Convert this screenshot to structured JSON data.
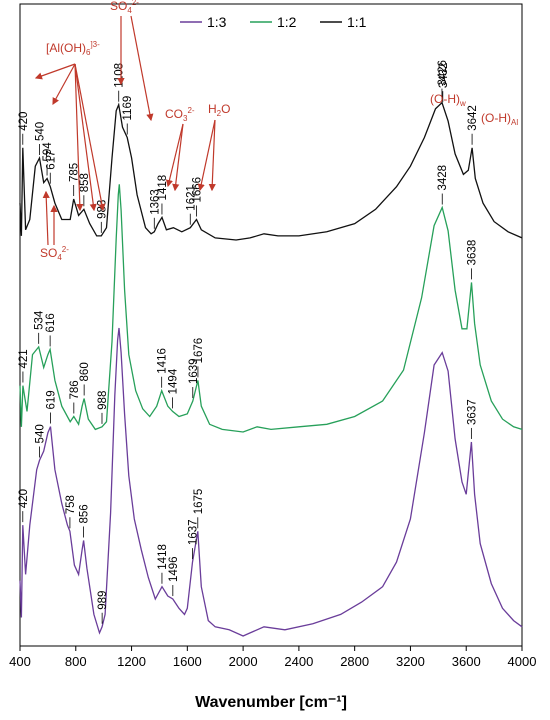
{
  "chart_data": {
    "type": "line",
    "xlabel": "Wavenumber [cm⁻¹]",
    "ylabel": "",
    "title": "",
    "xlim": [
      400,
      4000
    ],
    "xticks": [
      400,
      800,
      1200,
      1600,
      2000,
      2400,
      2800,
      3200,
      3600,
      4000
    ],
    "legend_position": "top",
    "grid": false,
    "series": [
      {
        "name": "1:3",
        "color": "#6a3d9a",
        "points": [
          [
            400,
            0.18
          ],
          [
            410,
            0.06
          ],
          [
            420,
            0.36
          ],
          [
            440,
            0.2
          ],
          [
            470,
            0.36
          ],
          [
            520,
            0.54
          ],
          [
            540,
            0.57
          ],
          [
            570,
            0.6
          ],
          [
            600,
            0.66
          ],
          [
            619,
            0.68
          ],
          [
            650,
            0.54
          ],
          [
            700,
            0.43
          ],
          [
            740,
            0.36
          ],
          [
            758,
            0.34
          ],
          [
            790,
            0.23
          ],
          [
            820,
            0.2
          ],
          [
            845,
            0.28
          ],
          [
            856,
            0.31
          ],
          [
            880,
            0.22
          ],
          [
            930,
            0.07
          ],
          [
            970,
            0.01
          ],
          [
            989,
            0.03
          ],
          [
            1010,
            0.07
          ],
          [
            1050,
            0.4
          ],
          [
            1080,
            0.78
          ],
          [
            1100,
            0.96
          ],
          [
            1110,
            1.0
          ],
          [
            1125,
            0.92
          ],
          [
            1150,
            0.72
          ],
          [
            1180,
            0.52
          ],
          [
            1220,
            0.38
          ],
          [
            1270,
            0.28
          ],
          [
            1320,
            0.19
          ],
          [
            1370,
            0.12
          ],
          [
            1418,
            0.16
          ],
          [
            1460,
            0.13
          ],
          [
            1496,
            0.12
          ],
          [
            1540,
            0.09
          ],
          [
            1580,
            0.07
          ],
          [
            1600,
            0.09
          ],
          [
            1637,
            0.24
          ],
          [
            1675,
            0.34
          ],
          [
            1700,
            0.16
          ],
          [
            1750,
            0.05
          ],
          [
            1800,
            0.03
          ],
          [
            1900,
            0.02
          ],
          [
            2000,
            0.0
          ],
          [
            2050,
            0.01
          ],
          [
            2150,
            0.03
          ],
          [
            2300,
            0.02
          ],
          [
            2500,
            0.04
          ],
          [
            2700,
            0.07
          ],
          [
            2850,
            0.11
          ],
          [
            3000,
            0.16
          ],
          [
            3100,
            0.24
          ],
          [
            3200,
            0.38
          ],
          [
            3300,
            0.66
          ],
          [
            3370,
            0.88
          ],
          [
            3428,
            0.92
          ],
          [
            3470,
            0.86
          ],
          [
            3520,
            0.64
          ],
          [
            3570,
            0.5
          ],
          [
            3600,
            0.46
          ],
          [
            3637,
            0.63
          ],
          [
            3660,
            0.46
          ],
          [
            3700,
            0.3
          ],
          [
            3780,
            0.17
          ],
          [
            3860,
            0.09
          ],
          [
            3940,
            0.05
          ],
          [
            4000,
            0.03
          ]
        ]
      },
      {
        "name": "1:2",
        "color": "#27a05a",
        "points": [
          [
            400,
            0.18
          ],
          [
            410,
            0.02
          ],
          [
            421,
            0.18
          ],
          [
            450,
            0.08
          ],
          [
            490,
            0.3
          ],
          [
            534,
            0.33
          ],
          [
            570,
            0.25
          ],
          [
            600,
            0.3
          ],
          [
            616,
            0.32
          ],
          [
            650,
            0.2
          ],
          [
            700,
            0.1
          ],
          [
            760,
            0.04
          ],
          [
            786,
            0.06
          ],
          [
            820,
            0.03
          ],
          [
            845,
            0.1
          ],
          [
            860,
            0.13
          ],
          [
            890,
            0.05
          ],
          [
            940,
            0.01
          ],
          [
            988,
            0.02
          ],
          [
            1020,
            0.04
          ],
          [
            1060,
            0.35
          ],
          [
            1090,
            0.75
          ],
          [
            1105,
            0.92
          ],
          [
            1112,
            0.96
          ],
          [
            1125,
            0.86
          ],
          [
            1150,
            0.55
          ],
          [
            1180,
            0.3
          ],
          [
            1230,
            0.16
          ],
          [
            1280,
            0.09
          ],
          [
            1330,
            0.06
          ],
          [
            1380,
            0.1
          ],
          [
            1416,
            0.16
          ],
          [
            1460,
            0.1
          ],
          [
            1494,
            0.08
          ],
          [
            1540,
            0.06
          ],
          [
            1600,
            0.07
          ],
          [
            1639,
            0.12
          ],
          [
            1676,
            0.2
          ],
          [
            1700,
            0.1
          ],
          [
            1760,
            0.03
          ],
          [
            1850,
            0.01
          ],
          [
            2000,
            0.0
          ],
          [
            2100,
            0.02
          ],
          [
            2200,
            0.01
          ],
          [
            2400,
            0.02
          ],
          [
            2600,
            0.03
          ],
          [
            2800,
            0.06
          ],
          [
            3000,
            0.12
          ],
          [
            3150,
            0.24
          ],
          [
            3280,
            0.52
          ],
          [
            3370,
            0.8
          ],
          [
            3428,
            0.87
          ],
          [
            3470,
            0.78
          ],
          [
            3520,
            0.55
          ],
          [
            3570,
            0.4
          ],
          [
            3605,
            0.4
          ],
          [
            3638,
            0.58
          ],
          [
            3660,
            0.42
          ],
          [
            3700,
            0.26
          ],
          [
            3780,
            0.12
          ],
          [
            3860,
            0.05
          ],
          [
            3940,
            0.02
          ],
          [
            4000,
            0.01
          ]
        ]
      },
      {
        "name": "1:1",
        "color": "#111111",
        "points": [
          [
            400,
            0.18
          ],
          [
            410,
            0.02
          ],
          [
            420,
            0.45
          ],
          [
            440,
            0.05
          ],
          [
            470,
            0.1
          ],
          [
            510,
            0.36
          ],
          [
            540,
            0.4
          ],
          [
            570,
            0.28
          ],
          [
            594,
            0.3
          ],
          [
            617,
            0.26
          ],
          [
            650,
            0.18
          ],
          [
            700,
            0.1
          ],
          [
            760,
            0.1
          ],
          [
            785,
            0.2
          ],
          [
            820,
            0.12
          ],
          [
            858,
            0.15
          ],
          [
            900,
            0.08
          ],
          [
            950,
            0.02
          ],
          [
            983,
            0.02
          ],
          [
            1020,
            0.06
          ],
          [
            1060,
            0.4
          ],
          [
            1090,
            0.63
          ],
          [
            1108,
            0.66
          ],
          [
            1135,
            0.55
          ],
          [
            1169,
            0.5
          ],
          [
            1200,
            0.4
          ],
          [
            1240,
            0.22
          ],
          [
            1300,
            0.06
          ],
          [
            1340,
            0.03
          ],
          [
            1363,
            0.04
          ],
          [
            1390,
            0.08
          ],
          [
            1418,
            0.11
          ],
          [
            1450,
            0.05
          ],
          [
            1500,
            0.06
          ],
          [
            1560,
            0.04
          ],
          [
            1621,
            0.06
          ],
          [
            1666,
            0.1
          ],
          [
            1700,
            0.05
          ],
          [
            1800,
            0.01
          ],
          [
            1950,
            0.0
          ],
          [
            2050,
            0.01
          ],
          [
            2150,
            0.03
          ],
          [
            2250,
            0.02
          ],
          [
            2400,
            0.02
          ],
          [
            2600,
            0.04
          ],
          [
            2800,
            0.08
          ],
          [
            2950,
            0.15
          ],
          [
            3100,
            0.26
          ],
          [
            3200,
            0.36
          ],
          [
            3300,
            0.5
          ],
          [
            3380,
            0.64
          ],
          [
            3426,
            0.67
          ],
          [
            3470,
            0.58
          ],
          [
            3520,
            0.42
          ],
          [
            3580,
            0.32
          ],
          [
            3615,
            0.34
          ],
          [
            3642,
            0.45
          ],
          [
            3665,
            0.3
          ],
          [
            3720,
            0.18
          ],
          [
            3800,
            0.09
          ],
          [
            3900,
            0.04
          ],
          [
            4000,
            0.01
          ]
        ]
      }
    ],
    "peak_labels": [
      {
        "series": "1:1",
        "labels": [
          {
            "x": 420,
            "text": "420"
          },
          {
            "x": 540,
            "text": "540"
          },
          {
            "x": 594,
            "text": "594"
          },
          {
            "x": 617,
            "text": "617"
          },
          {
            "x": 785,
            "text": "785"
          },
          {
            "x": 858,
            "text": "858"
          },
          {
            "x": 983,
            "text": "983"
          },
          {
            "x": 1108,
            "text": "1108"
          },
          {
            "x": 1169,
            "text": "1169"
          },
          {
            "x": 1363,
            "text": "1363"
          },
          {
            "x": 1418,
            "text": "1418"
          },
          {
            "x": 1621,
            "text": "1621"
          },
          {
            "x": 1666,
            "text": "1666"
          },
          {
            "x": 3426,
            "text": "3426"
          },
          {
            "x": 3432,
            "text": "3432"
          },
          {
            "x": 3642,
            "text": "3642"
          }
        ]
      },
      {
        "series": "1:2",
        "labels": [
          {
            "x": 421,
            "text": "421"
          },
          {
            "x": 534,
            "text": "534"
          },
          {
            "x": 616,
            "text": "616"
          },
          {
            "x": 786,
            "text": "786"
          },
          {
            "x": 860,
            "text": "860"
          },
          {
            "x": 988,
            "text": "988"
          },
          {
            "x": 1416,
            "text": "1416"
          },
          {
            "x": 1494,
            "text": "1494"
          },
          {
            "x": 1639,
            "text": "1639"
          },
          {
            "x": 1676,
            "text": "1676"
          },
          {
            "x": 3428,
            "text": "3428"
          },
          {
            "x": 3638,
            "text": "3638"
          }
        ]
      },
      {
        "series": "1:3",
        "labels": [
          {
            "x": 420,
            "text": "420"
          },
          {
            "x": 540,
            "text": "540"
          },
          {
            "x": 619,
            "text": "619"
          },
          {
            "x": 758,
            "text": "758"
          },
          {
            "x": 856,
            "text": "856"
          },
          {
            "x": 989,
            "text": "989"
          },
          {
            "x": 1418,
            "text": "1418"
          },
          {
            "x": 1496,
            "text": "1496"
          },
          {
            "x": 1637,
            "text": "1637"
          },
          {
            "x": 1675,
            "text": "1675"
          },
          {
            "x": 3637,
            "text": "3637"
          }
        ]
      }
    ],
    "band_annotations": [
      {
        "base": "[Al(OH)",
        "sub": "6",
        "sup": "]3-"
      },
      {
        "base": "SO",
        "sub": "4",
        "sup": "2-"
      },
      {
        "base": "CO",
        "sub": "3",
        "sup": "2-"
      },
      {
        "base": "H",
        "sub": "2",
        "sup": "",
        "tail": "O"
      },
      {
        "base": "(O-H)",
        "sub": "w",
        "sup": ""
      },
      {
        "base": "(O-H)",
        "sub": "Al",
        "sup": ""
      },
      {
        "base": "SO",
        "sub": "4",
        "sup": "2-"
      }
    ],
    "annotation_color": "#c0392b"
  }
}
